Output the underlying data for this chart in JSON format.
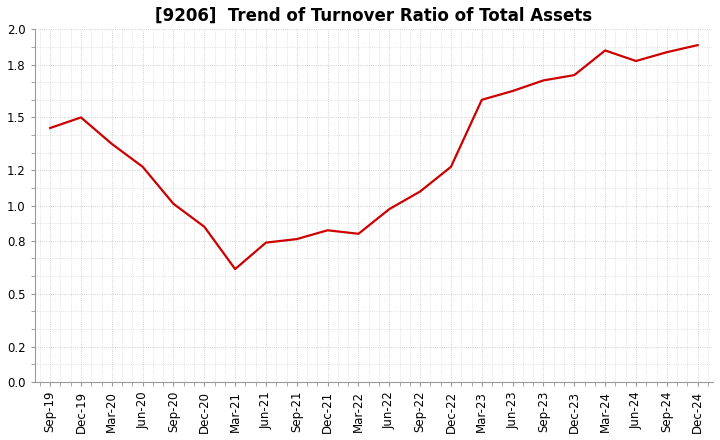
{
  "title": "[9206]  Trend of Turnover Ratio of Total Assets",
  "x_labels": [
    "Sep-19",
    "Dec-19",
    "Mar-20",
    "Jun-20",
    "Sep-20",
    "Dec-20",
    "Mar-21",
    "Jun-21",
    "Sep-21",
    "Dec-21",
    "Mar-22",
    "Jun-22",
    "Sep-22",
    "Dec-22",
    "Mar-23",
    "Jun-23",
    "Sep-23",
    "Dec-23",
    "Mar-24",
    "Jun-24",
    "Sep-24",
    "Dec-24"
  ],
  "y_values": [
    1.44,
    1.5,
    1.35,
    1.22,
    1.01,
    0.88,
    0.64,
    0.79,
    0.81,
    0.86,
    0.84,
    0.98,
    1.08,
    1.22,
    1.6,
    1.65,
    1.71,
    1.74,
    1.88,
    1.82,
    1.87,
    1.91
  ],
  "line_color": "#cc0000",
  "line_width": 1.6,
  "ylim": [
    0.0,
    2.0
  ],
  "yticks": [
    0.0,
    0.2,
    0.5,
    0.8,
    1.0,
    1.2,
    1.5,
    1.8,
    2.0
  ],
  "background_color": "#ffffff",
  "grid_color": "#bbbbbb",
  "title_fontsize": 12,
  "tick_fontsize": 8.5
}
